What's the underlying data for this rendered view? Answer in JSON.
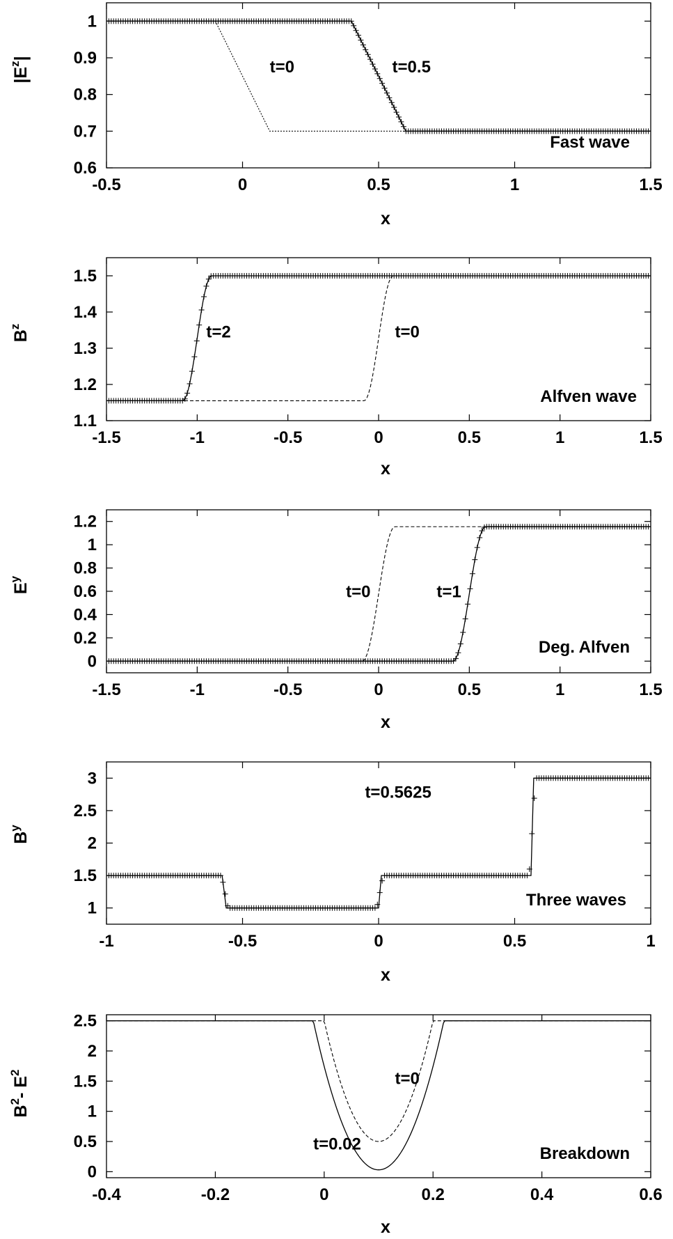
{
  "chart_data": [
    {
      "type": "line",
      "panel_label": "Fast wave",
      "ylabel": {
        "base": "|E",
        "sup": "z",
        "tail": "|"
      },
      "xlabel": "x",
      "xlim": [
        -0.5,
        1.5
      ],
      "ylim": [
        0.6,
        1.05
      ],
      "xticks": [
        "-0.5",
        "0",
        "0.5",
        "1",
        "1.5"
      ],
      "xtick_values": [
        -0.5,
        0,
        0.5,
        1,
        1.5
      ],
      "yticks": [
        "0.6",
        "0.7",
        "0.8",
        "0.9",
        "1"
      ],
      "ytick_values": [
        0.6,
        0.7,
        0.8,
        0.9,
        1
      ],
      "annotations": [
        {
          "text": "t=0",
          "x": 0.1,
          "y": 0.86
        },
        {
          "text": "t=0.5",
          "x": 0.55,
          "y": 0.86
        }
      ],
      "series": [
        {
          "label": "t=0",
          "style": "dotted",
          "x": [
            -0.5,
            -0.1,
            0.1,
            1.5
          ],
          "y": [
            1,
            1,
            0.7,
            0.7
          ]
        },
        {
          "label": "t=0.5",
          "style": "solid",
          "x": [
            -0.5,
            0.4,
            0.6,
            1.5
          ],
          "y": [
            1,
            1,
            0.7,
            0.7
          ]
        },
        {
          "label": "t=0.5",
          "style": "points",
          "x0": -0.5,
          "x1": 1.5,
          "n": 230,
          "shape": "ramp",
          "params": {
            "a": 0.4,
            "b": 0.6,
            "y0": 1,
            "y1": 0.7
          }
        }
      ]
    },
    {
      "type": "line",
      "panel_label": "Alfven wave",
      "ylabel": {
        "base": "B",
        "sup": "z",
        "tail": ""
      },
      "xlabel": "x",
      "xlim": [
        -1.5,
        1.5
      ],
      "ylim": [
        1.1,
        1.55
      ],
      "xticks": [
        "-1.5",
        "-1",
        "-0.5",
        "0",
        "0.5",
        "1",
        "1.5"
      ],
      "xtick_values": [
        -1.5,
        -1,
        -0.5,
        0,
        0.5,
        1,
        1.5
      ],
      "yticks": [
        "1.1",
        "1.2",
        "1.3",
        "1.4",
        "1.5"
      ],
      "ytick_values": [
        1.1,
        1.2,
        1.3,
        1.4,
        1.5
      ],
      "annotations": [
        {
          "text": "t=2",
          "x": -0.95,
          "y": 1.33
        },
        {
          "text": "t=0",
          "x": 0.09,
          "y": 1.33
        }
      ],
      "series": [
        {
          "label": "t=0",
          "style": "dashed",
          "x0": -1.5,
          "x1": 1.5,
          "n": 300,
          "shape": "smooth",
          "params": {
            "a": -0.08,
            "b": 0.08,
            "y0": 1.155,
            "y1": 1.5
          }
        },
        {
          "label": "t=2",
          "style": "solid",
          "x0": -1.5,
          "x1": 1.5,
          "n": 300,
          "shape": "smooth",
          "params": {
            "a": -1.08,
            "b": -0.92,
            "y0": 1.155,
            "y1": 1.5
          }
        },
        {
          "label": "t=2",
          "style": "points",
          "x0": -1.5,
          "x1": 1.5,
          "n": 230,
          "shape": "smooth",
          "params": {
            "a": -1.08,
            "b": -0.92,
            "y0": 1.155,
            "y1": 1.5
          }
        }
      ]
    },
    {
      "type": "line",
      "panel_label": "Deg. Alfven",
      "ylabel": {
        "base": "E",
        "sup": "y",
        "tail": ""
      },
      "xlabel": "x",
      "xlim": [
        -1.5,
        1.5
      ],
      "ylim": [
        -0.1,
        1.3
      ],
      "xticks": [
        "-1.5",
        "-1",
        "-0.5",
        "0",
        "0.5",
        "1",
        "1.5"
      ],
      "xtick_values": [
        -1.5,
        -1,
        -0.5,
        0,
        0.5,
        1,
        1.5
      ],
      "yticks": [
        "0",
        "0.2",
        "0.4",
        "0.6",
        "0.8",
        "1",
        "1.2"
      ],
      "ytick_values": [
        0,
        0.2,
        0.4,
        0.6,
        0.8,
        1,
        1.2
      ],
      "annotations": [
        {
          "text": "t=0",
          "x": -0.18,
          "y": 0.55
        },
        {
          "text": "t=1",
          "x": 0.32,
          "y": 0.55
        }
      ],
      "series": [
        {
          "label": "t=0",
          "style": "dashed",
          "x0": -1.5,
          "x1": 1.5,
          "n": 300,
          "shape": "smooth",
          "params": {
            "a": -0.09,
            "b": 0.09,
            "y0": 0,
            "y1": 1.155
          }
        },
        {
          "label": "t=1",
          "style": "solid",
          "x0": -1.5,
          "x1": 1.5,
          "n": 300,
          "shape": "smooth",
          "params": {
            "a": 0.41,
            "b": 0.59,
            "y0": 0,
            "y1": 1.155
          }
        },
        {
          "label": "t=1",
          "style": "points",
          "x0": -1.5,
          "x1": 1.5,
          "n": 230,
          "shape": "smooth",
          "params": {
            "a": 0.41,
            "b": 0.59,
            "y0": 0,
            "y1": 1.155
          }
        }
      ]
    },
    {
      "type": "line",
      "panel_label": "Three waves",
      "annotation_title": "t=0.5625",
      "ylabel": {
        "base": "B",
        "sup": "y",
        "tail": ""
      },
      "xlabel": "x",
      "xlim": [
        -1,
        1
      ],
      "ylim": [
        0.75,
        3.25
      ],
      "xticks": [
        "-1",
        "-0.5",
        "0",
        "0.5",
        "1"
      ],
      "xtick_values": [
        -1,
        -0.5,
        0,
        0.5,
        1
      ],
      "yticks": [
        "1",
        "1.5",
        "2",
        "2.5",
        "3"
      ],
      "ytick_values": [
        1,
        1.5,
        2,
        2.5,
        3
      ],
      "annotations": [
        {
          "text": "t=0.5625",
          "x": -0.05,
          "y": 2.7
        }
      ],
      "series": [
        {
          "label": "t=0.5625",
          "style": "solid",
          "x": [
            -1,
            -0.575,
            -0.56,
            0,
            0.01,
            0.56,
            0.57,
            1
          ],
          "y": [
            1.5,
            1.5,
            1.0,
            1.0,
            1.5,
            1.5,
            3.0,
            3.0
          ]
        },
        {
          "label": "t=0.5625",
          "style": "points",
          "x0": -1,
          "x1": 1,
          "n": 230,
          "shape": "steps",
          "params": {
            "edges": [
              -0.565,
              0.005,
              0.565
            ],
            "levels": [
              1.5,
              1.0,
              1.5,
              3.0
            ],
            "w": 0.012
          }
        }
      ]
    },
    {
      "type": "line",
      "panel_label": "Breakdown",
      "ylabel": {
        "base": "B",
        "sup": "2",
        "mid": "- E",
        "sup2": "2"
      },
      "xlabel": "x",
      "xlim": [
        -0.4,
        0.6
      ],
      "ylim": [
        -0.1,
        2.6
      ],
      "xticks": [
        "-0.4",
        "-0.2",
        "0",
        "0.2",
        "0.4",
        "0.6"
      ],
      "xtick_values": [
        -0.4,
        -0.2,
        0,
        0.2,
        0.4,
        0.6
      ],
      "yticks": [
        "0",
        "0.5",
        "1",
        "1.5",
        "2",
        "2.5"
      ],
      "ytick_values": [
        0,
        0.5,
        1,
        1.5,
        2,
        2.5
      ],
      "annotations": [
        {
          "text": "t=0",
          "x": 0.13,
          "y": 1.45
        },
        {
          "text": "t=0.02",
          "x": -0.02,
          "y": 0.37
        }
      ],
      "series": [
        {
          "label": "t=0",
          "style": "dashed",
          "x0": -0.4,
          "x1": 0.6,
          "n": 400,
          "shape": "well",
          "params": {
            "a": 0.0,
            "b": 0.2,
            "c": 0.1,
            "top": 2.5,
            "bottom": 0.5
          }
        },
        {
          "label": "t=0.02",
          "style": "solid",
          "x0": -0.4,
          "x1": 0.6,
          "n": 400,
          "shape": "well",
          "params": {
            "a": -0.02,
            "b": 0.22,
            "c": 0.1,
            "top": 2.5,
            "bottom": 0.03
          }
        }
      ]
    }
  ]
}
